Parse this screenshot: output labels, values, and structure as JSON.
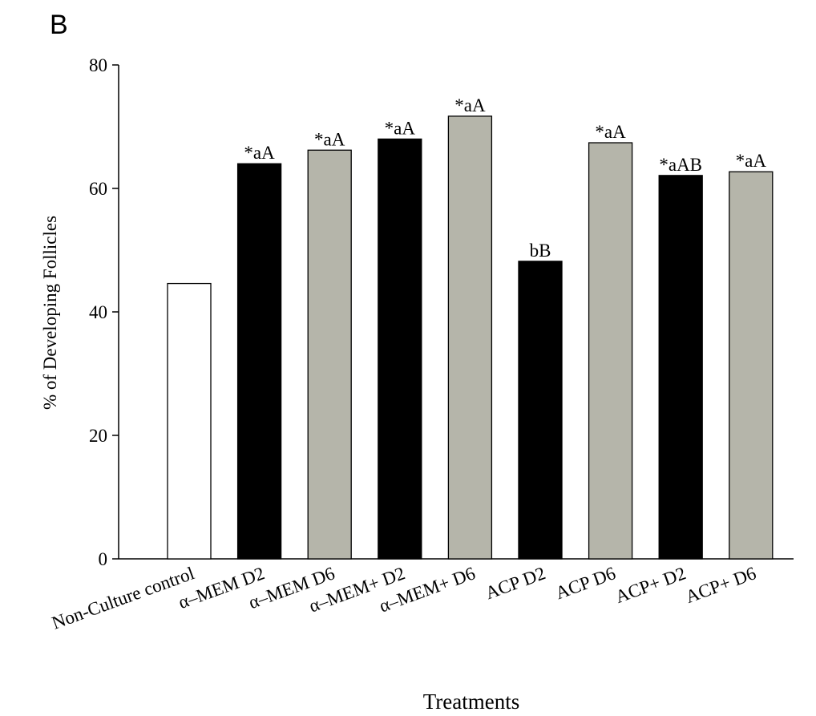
{
  "panel_label": "B",
  "chart_data": {
    "type": "bar",
    "title": "",
    "xlabel": "Treatments",
    "ylabel": "% of Developing Follicles",
    "ylim": [
      0,
      80
    ],
    "yticks": [
      0,
      20,
      40,
      60,
      80
    ],
    "grid": false,
    "legend": "none",
    "categories": [
      "Non-Culture control",
      "α–MEM D2",
      "α–MEM D6",
      "α–MEM+ D2",
      "α–MEM+ D6",
      "ACP D2",
      "ACP D6",
      "ACP+ D2",
      "ACP+ D6"
    ],
    "values": [
      44.6,
      64.0,
      66.2,
      68.0,
      71.7,
      48.2,
      67.4,
      62.1,
      62.7
    ],
    "data_labels": [
      "",
      "*aA",
      "*aA",
      "*aA",
      "*aA",
      "bB",
      "*aA",
      "*aAB",
      "*aA"
    ],
    "bar_colors": [
      "#ffffff",
      "#000000",
      "#b5b5aa",
      "#000000",
      "#b5b5aa",
      "#000000",
      "#b5b5aa",
      "#000000",
      "#b5b5aa"
    ]
  }
}
